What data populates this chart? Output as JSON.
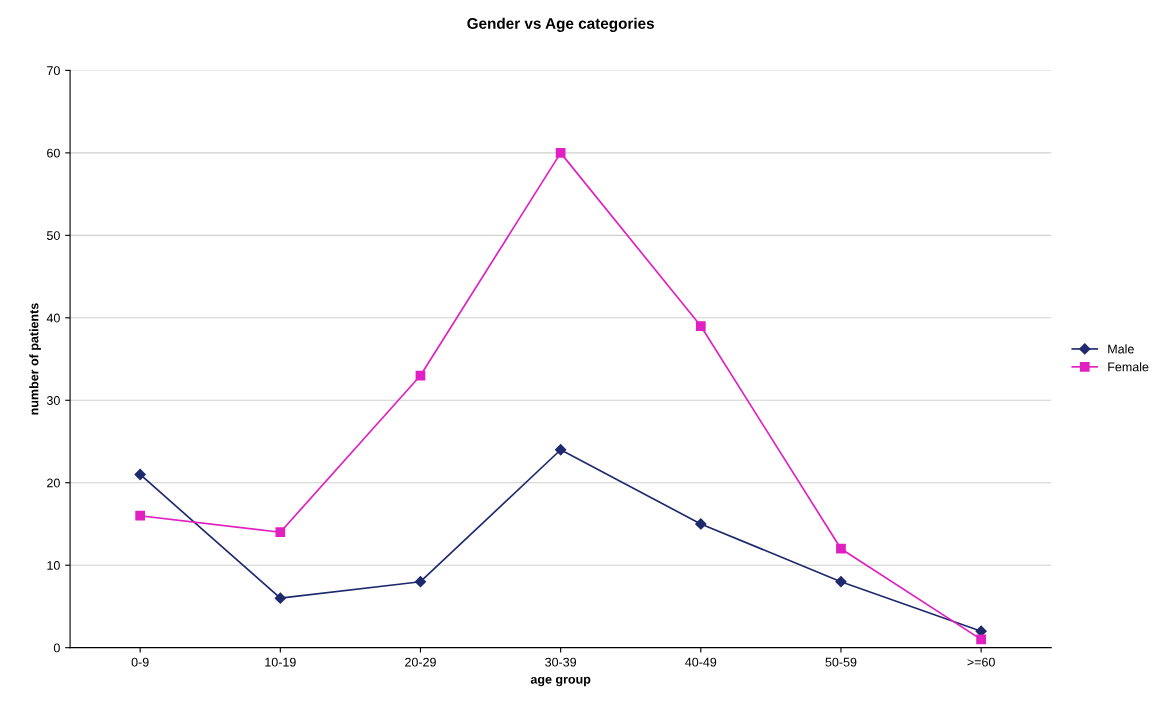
{
  "chart_data": {
    "type": "line",
    "title": "Gender vs Age categories",
    "xlabel": "age group",
    "ylabel": "number of patients",
    "categories": [
      "0-9",
      "10-19",
      "20-29",
      "30-39",
      "40-49",
      "50-59",
      ">=60"
    ],
    "series": [
      {
        "name": "Male",
        "color": "#1f2a6e",
        "marker": "diamond",
        "values": [
          21,
          6,
          8,
          24,
          15,
          8,
          2
        ]
      },
      {
        "name": "Female",
        "color": "#e020c0",
        "marker": "square",
        "values": [
          16,
          14,
          33,
          60,
          39,
          12,
          1
        ]
      }
    ],
    "ylim": [
      0,
      70
    ],
    "yticks": [
      0,
      10,
      20,
      30,
      40,
      50,
      60,
      70
    ],
    "grid": "y",
    "legend": "right"
  }
}
